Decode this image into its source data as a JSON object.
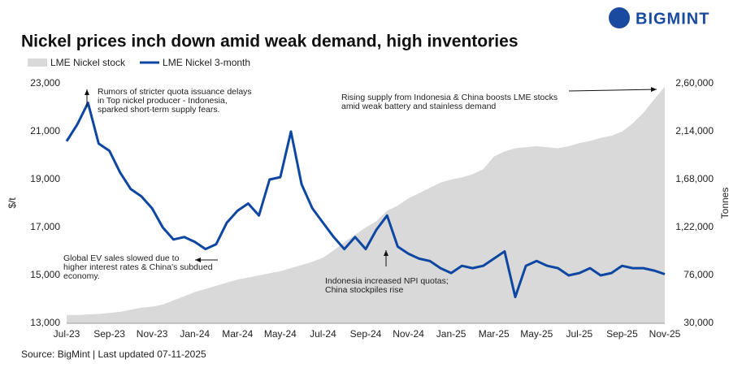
{
  "chart_data": {
    "type": "line",
    "title": "Nickel prices inch down amid weak demand, high inventories",
    "brand": "BIGMINT",
    "source": "Source: BigMint | Last updated 07-11-2025",
    "ylabel": "$/t",
    "y2label": "Tonnes",
    "categories": [
      "Jul-23",
      null,
      null,
      null,
      "Sep-23",
      null,
      null,
      null,
      "Nov-23",
      null,
      null,
      null,
      "Jan-24",
      null,
      null,
      null,
      "Mar-24",
      null,
      null,
      null,
      "May-24",
      null,
      null,
      null,
      "Jul-24",
      null,
      null,
      null,
      "Sep-24",
      null,
      null,
      null,
      "Nov-24",
      null,
      null,
      null,
      "Jan-25",
      null,
      null,
      null,
      "Mar-25",
      null,
      null,
      null,
      "May-25",
      null,
      null,
      null,
      "Jul-25",
      null,
      null,
      null,
      "Sep-25",
      null,
      null,
      null,
      "Nov-25"
    ],
    "series": [
      {
        "name": "LME Nickel stock",
        "color": "#d9d9d9",
        "kind": "area",
        "axis": "y2",
        "values": [
          38000,
          38000,
          38500,
          39000,
          40000,
          41000,
          43000,
          45000,
          46000,
          48000,
          52000,
          56000,
          60000,
          63000,
          66000,
          69000,
          72000,
          74000,
          76000,
          78000,
          80000,
          83000,
          86000,
          89000,
          93000,
          100000,
          108000,
          115000,
          122000,
          128000,
          138000,
          143000,
          150000,
          155000,
          160000,
          165000,
          168000,
          170000,
          173000,
          178000,
          190000,
          195000,
          198000,
          199000,
          200000,
          199000,
          198000,
          200000,
          203000,
          205000,
          208000,
          210000,
          214000,
          222000,
          232000,
          245000,
          257000
        ]
      },
      {
        "name": "LME Nickel 3-month",
        "color": "#0d47a1",
        "kind": "line",
        "values": [
          20600,
          21300,
          22200,
          20500,
          20200,
          19300,
          18600,
          18300,
          17800,
          17000,
          16500,
          16600,
          16400,
          16100,
          16300,
          17200,
          17700,
          18000,
          17500,
          19000,
          19100,
          21000,
          18800,
          17800,
          17200,
          16600,
          16100,
          16600,
          16100,
          16900,
          17500,
          16200,
          15900,
          15700,
          15600,
          15300,
          15100,
          15400,
          15300,
          15400,
          15700,
          16000,
          14100,
          15400,
          15600,
          15400,
          15300,
          15000,
          15100,
          15300,
          15000,
          15100,
          15400,
          15300,
          15300,
          15200,
          15050
        ]
      }
    ],
    "ylim": [
      13000,
      23000
    ],
    "yticks": [
      {
        "value": 13000,
        "label": "13,000"
      },
      {
        "value": 15000,
        "label": "15,000"
      },
      {
        "value": 17000,
        "label": "17,000"
      },
      {
        "value": 19000,
        "label": "19,000"
      },
      {
        "value": 21000,
        "label": "21,000"
      },
      {
        "value": 23000,
        "label": "23,000"
      }
    ],
    "y2lim": [
      30000,
      260000
    ],
    "y2ticks": [
      {
        "value": 30000,
        "label": "30,000"
      },
      {
        "value": 76000,
        "label": "76,000"
      },
      {
        "value": 122000,
        "label": "1,22,000"
      },
      {
        "value": 168000,
        "label": "1,68,000"
      },
      {
        "value": 214000,
        "label": "2,14,000"
      },
      {
        "value": 260000,
        "label": "2,60,000"
      }
    ],
    "annotations": [
      [
        "Rumors of stricter quota issuance delays",
        "in Top nickel producer - Indonesia,",
        "sparked short-term supply fears."
      ],
      [
        "Global EV sales slowed due to",
        "higher interest rates & China's subdued",
        "economy."
      ],
      [
        "Indonesia increased NPI quotas;",
        "China stockpiles rise"
      ],
      [
        "Rising supply from Indonesia & China boosts LME stocks",
        "amid weak battery and stainless demand"
      ]
    ],
    "legend": "top-left"
  }
}
